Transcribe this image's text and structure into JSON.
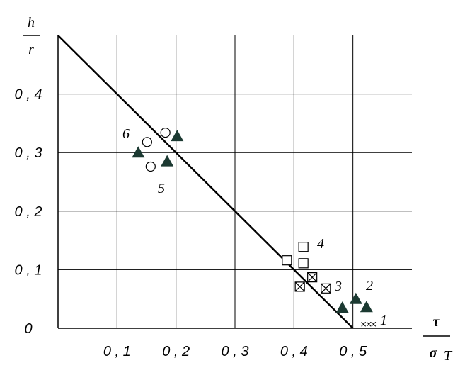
{
  "chart_data": {
    "type": "scatter",
    "ylabel": {
      "numerator": "h",
      "denominator": "r"
    },
    "xlabel": {
      "numerator": "τ",
      "denominator": "σ",
      "subscript": "T"
    },
    "xlim": [
      0,
      0.6
    ],
    "ylim": [
      0,
      0.5
    ],
    "xticks": [
      {
        "value": 0.1,
        "label": "0 , 1"
      },
      {
        "value": 0.2,
        "label": "0 , 2"
      },
      {
        "value": 0.3,
        "label": "0 , 3"
      },
      {
        "value": 0.4,
        "label": "0 , 4"
      },
      {
        "value": 0.5,
        "label": "0 , 5"
      }
    ],
    "yticks": [
      0,
      {
        "value": 0.1,
        "label": "0 , 1"
      },
      {
        "value": 0.2,
        "label": "0 , 2"
      },
      {
        "value": 0.3,
        "label": "0 , 3"
      },
      {
        "value": 0.4,
        "label": "0 , 4"
      }
    ],
    "grid": true,
    "line": {
      "x": [
        0,
        0.5
      ],
      "y": [
        0.5,
        0
      ],
      "color": "#000000"
    },
    "series": [
      {
        "marker": "triangle",
        "color": "#1c3a32",
        "x": [
          0.136,
          0.185,
          0.202,
          0.482,
          0.505,
          0.523
        ],
        "values": [
          0.3,
          0.285,
          0.328,
          0.035,
          0.05,
          0.036
        ]
      },
      {
        "marker": "circle",
        "color": "#000000",
        "x": [
          0.151,
          0.182,
          0.157
        ],
        "values": [
          0.318,
          0.334,
          0.276
        ]
      },
      {
        "marker": "square",
        "color": "#000000",
        "x": [
          0.388,
          0.416,
          0.416
        ],
        "values": [
          0.116,
          0.139,
          0.111
        ]
      },
      {
        "marker": "crossed-square",
        "color": "#000000",
        "x": [
          0.41,
          0.431,
          0.454
        ],
        "values": [
          0.071,
          0.087,
          0.068
        ]
      },
      {
        "marker": "x",
        "color": "#000000",
        "x": [
          0.518,
          0.527,
          0.535
        ],
        "values": [
          0.007,
          0.007,
          0.007
        ]
      }
    ],
    "annotations": [
      "6",
      "5",
      "4",
      "3",
      "2",
      "1"
    ]
  }
}
